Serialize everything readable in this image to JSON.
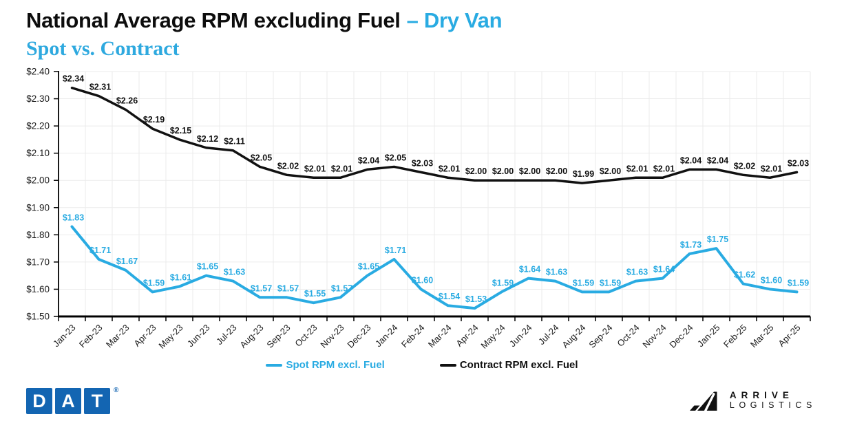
{
  "header": {
    "title_main": "National Average RPM excluding Fuel",
    "title_highlight": "– Dry Van",
    "subtitle": "Spot vs. Contract"
  },
  "chart_data": {
    "type": "line",
    "title": "National Average RPM excluding Fuel – Dry Van",
    "subtitle": "Spot vs. Contract",
    "categories": [
      "Jan-23",
      "Feb-23",
      "Mar-23",
      "Apr-23",
      "May-23",
      "Jun-23",
      "Jul-23",
      "Aug-23",
      "Sep-23",
      "Oct-23",
      "Nov-23",
      "Dec-23",
      "Jan-24",
      "Feb-24",
      "Mar-24",
      "Apr-24",
      "May-24",
      "Jun-24",
      "Jul-24",
      "Aug-24",
      "Sep-24",
      "Oct-24",
      "Nov-24",
      "Dec-24",
      "Jan-25",
      "Feb-25",
      "Mar-25",
      "Apr-25"
    ],
    "series": [
      {
        "name": "Spot RPM excl. Fuel",
        "color": "#29ABE2",
        "line_width": 4,
        "values": [
          1.83,
          1.71,
          1.67,
          1.59,
          1.61,
          1.65,
          1.63,
          1.57,
          1.57,
          1.55,
          1.57,
          1.65,
          1.71,
          1.6,
          1.54,
          1.53,
          1.59,
          1.64,
          1.63,
          1.59,
          1.59,
          1.63,
          1.64,
          1.73,
          1.75,
          1.62,
          1.6,
          1.59
        ]
      },
      {
        "name": "Contract RPM excl. Fuel",
        "color": "#111111",
        "line_width": 3.5,
        "values": [
          2.34,
          2.31,
          2.26,
          2.19,
          2.15,
          2.12,
          2.11,
          2.05,
          2.02,
          2.01,
          2.01,
          2.04,
          2.05,
          2.03,
          2.01,
          2.0,
          2.0,
          2.0,
          2.0,
          1.99,
          2.0,
          2.01,
          2.01,
          2.04,
          2.04,
          2.02,
          2.01,
          2.03
        ]
      }
    ],
    "ylim": [
      1.5,
      2.4
    ],
    "y_ticks": [
      1.5,
      1.6,
      1.7,
      1.8,
      1.9,
      2.0,
      2.1,
      2.2,
      2.3,
      2.4
    ],
    "y_tick_labels": [
      "$1.50",
      "$1.60",
      "$1.70",
      "$1.80",
      "$1.90",
      "$2.00",
      "$2.10",
      "$2.20",
      "$2.30",
      "$2.40"
    ],
    "value_prefix": "$",
    "grid": true,
    "legend_position": "bottom"
  },
  "footer": {
    "dat": {
      "letters": [
        "D",
        "A",
        "T"
      ],
      "registered": "®",
      "brand_color": "#1365B2"
    },
    "arrive": {
      "line1": "ARRIVE",
      "line2": "LOGISTICS"
    }
  },
  "colors": {
    "accent_blue": "#29ABE2",
    "subtitle_blue": "#2EA9DF",
    "contract_black": "#111111",
    "grid_gray": "#ebebeb"
  }
}
